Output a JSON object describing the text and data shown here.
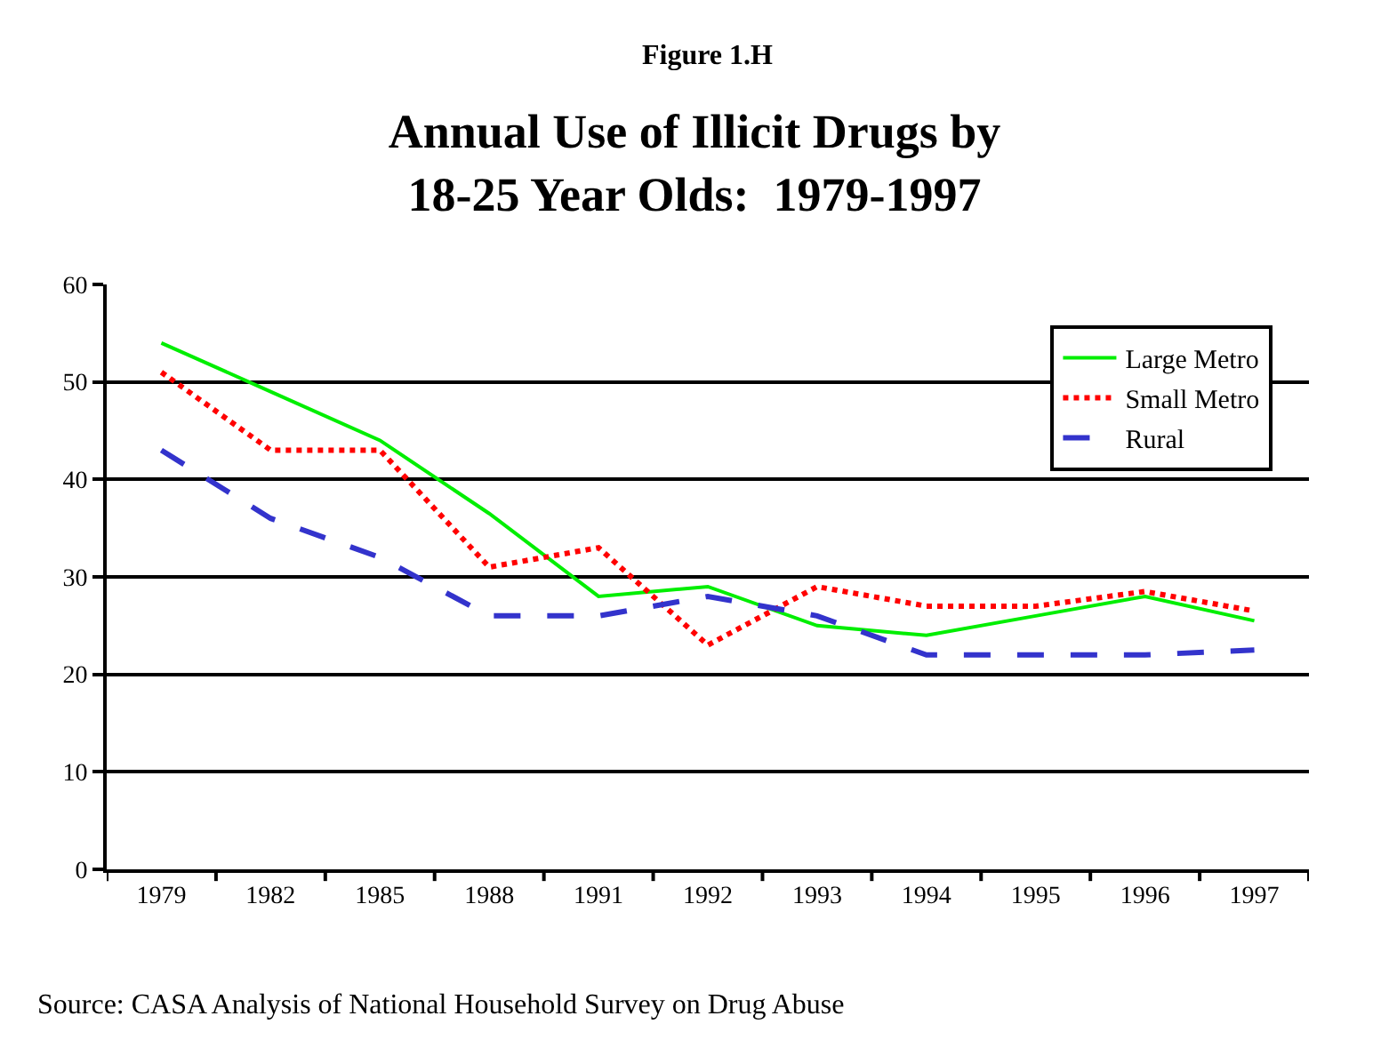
{
  "chart_data": {
    "type": "line",
    "title": "Annual Use of Illicit Drugs by\n18-25 Year Olds:  1979-1997",
    "subtitle": "Figure 1.H",
    "categories": [
      "1979",
      "1982",
      "1985",
      "1988",
      "1991",
      "1992",
      "1993",
      "1994",
      "1995",
      "1996",
      "1997"
    ],
    "series": [
      {
        "name": "Large Metro",
        "color": "#00ee00",
        "line_style": "solid",
        "values": [
          54,
          49,
          44,
          36.5,
          28,
          29,
          25,
          24,
          26,
          28,
          25.5
        ]
      },
      {
        "name": "Small Metro",
        "color": "#ff0000",
        "line_style": "dotted",
        "values": [
          51,
          43,
          43,
          31,
          33,
          23,
          29,
          27,
          27,
          28.5,
          26.5
        ]
      },
      {
        "name": "Rural",
        "color": "#3333cc",
        "line_style": "dashed",
        "values": [
          43,
          36,
          32,
          26,
          26,
          28,
          26,
          22,
          22,
          22,
          22.5
        ]
      }
    ],
    "ylim": [
      0,
      60
    ],
    "yticks": [
      0,
      10,
      20,
      30,
      40,
      50,
      60
    ],
    "grid": "y",
    "legend": "top right",
    "marker": "none",
    "annotations": [
      "Source: CASA Analysis of National Household Survey on Drug Abuse"
    ]
  }
}
